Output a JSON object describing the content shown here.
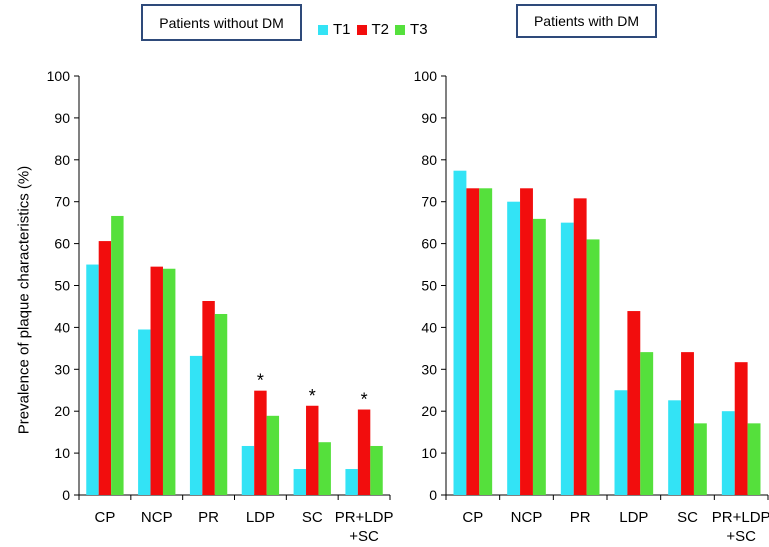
{
  "legend": [
    {
      "label": "T1",
      "color": "#33e3f5"
    },
    {
      "label": "T2",
      "color": "#f20d0d"
    },
    {
      "label": "T3",
      "color": "#55e03c"
    }
  ],
  "ylabel": "Prevalence of plaque characteristics (%)",
  "chart_data": [
    {
      "type": "bar",
      "title": "Patients without DM",
      "ylim": [
        0,
        100
      ],
      "yticks": [
        0,
        10,
        20,
        30,
        40,
        50,
        60,
        70,
        80,
        90,
        100
      ],
      "categories": [
        "CP",
        "NCP",
        "PR",
        "LDP",
        "SC",
        "PR+LDP\n+SC"
      ],
      "series": [
        {
          "name": "T1",
          "values": [
            55,
            39.5,
            33.2,
            11.7,
            6.2,
            6.2
          ]
        },
        {
          "name": "T2",
          "values": [
            60.6,
            54.5,
            46.3,
            24.9,
            21.3,
            20.4
          ]
        },
        {
          "name": "T3",
          "values": [
            66.6,
            54,
            43.2,
            18.9,
            12.6,
            11.7
          ]
        }
      ],
      "annotations": [
        {
          "category": "LDP",
          "series": "T2",
          "text": "*"
        },
        {
          "category": "SC",
          "series": "T2",
          "text": "*"
        },
        {
          "category": "PR+LDP\n+SC",
          "series": "T2",
          "text": "*"
        }
      ]
    },
    {
      "type": "bar",
      "title": "Patients with DM",
      "ylim": [
        0,
        100
      ],
      "yticks": [
        0,
        10,
        20,
        30,
        40,
        50,
        60,
        70,
        80,
        90,
        100
      ],
      "categories": [
        "CP",
        "NCP",
        "PR",
        "LDP",
        "SC",
        "PR+LDP\n+SC"
      ],
      "series": [
        {
          "name": "T1",
          "values": [
            77.4,
            70,
            65,
            25,
            22.6,
            20
          ]
        },
        {
          "name": "T2",
          "values": [
            73.2,
            73.2,
            70.8,
            43.9,
            34.1,
            31.7
          ]
        },
        {
          "name": "T3",
          "values": [
            73.2,
            65.9,
            61,
            34.1,
            17.1,
            17.1
          ]
        }
      ],
      "annotations": []
    }
  ]
}
